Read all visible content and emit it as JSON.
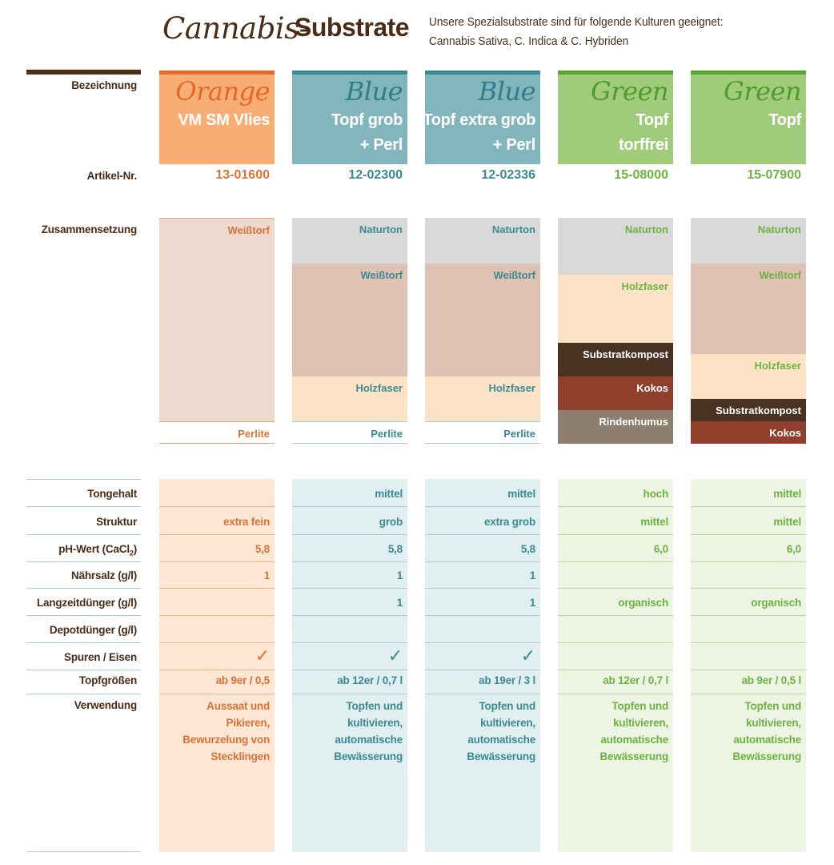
{
  "header": {
    "title_script": "Cannabis-",
    "title_bold": "Substrate",
    "subtitle_line1": "Unsere Spezialsubstrate sind für folgende Kulturen geeignet:",
    "subtitle_line2": "Cannabis Sativa, C. Indica & C. Hybriden"
  },
  "labels": {
    "bezeichnung": "Bezeichnung",
    "artikel": "Artikel-Nr.",
    "zusammensetzung": "Zusammensetzung",
    "tongehalt": "Tongehalt",
    "struktur": "Struktur",
    "ph_wert": "pH-Wert  (CaCl",
    "ph_sub": "2",
    "ph_close": ")",
    "naehrsalz": "Nährsalz (g/l)",
    "langzeit": "Langzeitdünger (g/l)",
    "depot": "Depotdünger (g/l)",
    "spuren": "Spuren / Eisen",
    "topf": "Topfgrößen",
    "verwendung": "Verwendung"
  },
  "colors": {
    "brown": "#4a2c17",
    "orange": "#f7ad73",
    "orange_text": "#d97236",
    "blue": "#83b5bc",
    "blue_text": "#3a8a94",
    "green": "#9fcb7b",
    "green_text": "#6cb341"
  },
  "icons": {
    "check": "check-icon"
  },
  "columns": [
    {
      "script": "Orange",
      "name_line1": "VM SM Vlies",
      "name_line2": "",
      "artnr": "13-01600",
      "layers": [
        "Weißtorf",
        "Perlite"
      ],
      "tongehalt": "",
      "struktur": "extra fein",
      "ph": "5,8",
      "naehrsalz": "1",
      "langzeit": "",
      "depot": "",
      "spuren": "✓",
      "topf": "ab 9er / 0,5",
      "verwendung": "Aussaat und\nPikieren,\nBewurzelung von\nStecklingen"
    },
    {
      "script": "Blue",
      "name_line1": "Topf grob",
      "name_line2": "+ Perl",
      "artnr": "12-02300",
      "layers": [
        "Naturton",
        "Weißtorf",
        "Holzfaser",
        "Perlite"
      ],
      "tongehalt": "mittel",
      "struktur": "grob",
      "ph": "5,8",
      "naehrsalz": "1",
      "langzeit": "1",
      "depot": "",
      "spuren": "✓",
      "topf": "ab 12er / 0,7 l",
      "verwendung": "Topfen und\nkultivieren,\nautomatische\nBewässerung"
    },
    {
      "script": "Blue",
      "name_line1": "Topf extra grob",
      "name_line2": "+ Perl",
      "artnr": "12-02336",
      "layers": [
        "Naturton",
        "Weißtorf",
        "Holzfaser",
        "Perlite"
      ],
      "tongehalt": "mittel",
      "struktur": "extra grob",
      "ph": "5,8",
      "naehrsalz": "1",
      "langzeit": "1",
      "depot": "",
      "spuren": "✓",
      "topf": "ab 19er / 3 l",
      "verwendung": "Topfen und\nkultivieren,\nautomatische\nBewässerung"
    },
    {
      "script": "Green",
      "name_line1": "Topf",
      "name_line2": "torffrei",
      "artnr": "15-08000",
      "layers": [
        "Naturton",
        "Holzfaser",
        "Substratkompost",
        "Kokos",
        "Rindenhumus"
      ],
      "tongehalt": "hoch",
      "struktur": "mittel",
      "ph": "6,0",
      "naehrsalz": "",
      "langzeit": "organisch",
      "depot": "",
      "spuren": "",
      "topf": "ab 12er / 0,7 l",
      "verwendung": "Topfen und\nkultivieren,\nautomatische\nBewässerung"
    },
    {
      "script": "Green",
      "name_line1": "Topf",
      "name_line2": "",
      "artnr": "15-07900",
      "layers": [
        "Naturton",
        "Weißtorf",
        "Holzfaser",
        "Substratkompost",
        "Kokos"
      ],
      "tongehalt": "mittel",
      "struktur": "mittel",
      "ph": "6,0",
      "naehrsalz": "",
      "langzeit": "organisch",
      "depot": "",
      "spuren": "",
      "topf": "ab 9er / 0,5 l",
      "verwendung": "Topfen und\nkultivieren,\nautomatische\nBewässerung"
    }
  ]
}
